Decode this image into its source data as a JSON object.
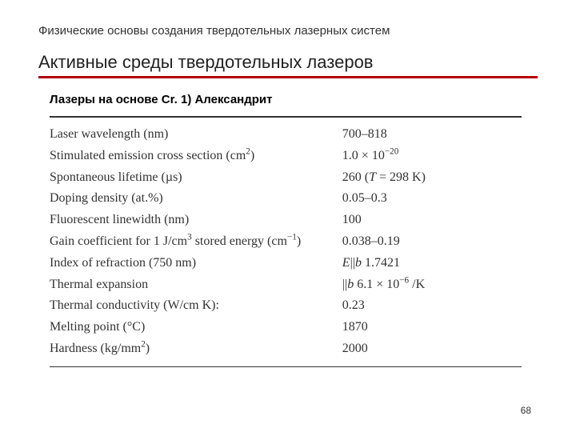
{
  "pretitle": "Физические основы создания твердотельных лазерных систем",
  "title": "Активные среды твердотельных лазеров",
  "title_rule_color": "#b30000",
  "subtitle": "Лазеры на основе Cr.  1) Александрит",
  "table": {
    "rule_color": "#323232",
    "rows": [
      {
        "param_html": "Laser wavelength (nm)",
        "value_html": "700–818"
      },
      {
        "param_html": "Stimulated emission cross section (cm<sup>2</sup>)",
        "value_html": "1.0 × 10<sup>−20</sup>"
      },
      {
        "param_html": "Spontaneous lifetime (µs)",
        "value_html": "260 (<i>T</i> = 298 K)"
      },
      {
        "param_html": "Doping density (at.%)",
        "value_html": "0.05–0.3"
      },
      {
        "param_html": "Fluorescent linewidth (nm)",
        "value_html": "100"
      },
      {
        "param_html": "Gain coefficient for 1 J/cm<sup>3</sup> stored energy (cm<sup>−1</sup>)",
        "value_html": "0.038–0.19"
      },
      {
        "param_html": "Index of refraction (750 nm)",
        "value_html": "<i>E</i>||<i>b</i> 1.7421"
      },
      {
        "param_html": "Thermal expansion",
        "value_html": "||<i>b</i> 6.1 × 10<sup>−6</sup> /K"
      },
      {
        "param_html": "Thermal conductivity (W/cm K):",
        "value_html": "0.23"
      },
      {
        "param_html": "Melting point (°C)",
        "value_html": "1870"
      },
      {
        "param_html": "Hardness (kg/mm<sup>2</sup>)",
        "value_html": "2000"
      }
    ]
  },
  "page_number": "68"
}
